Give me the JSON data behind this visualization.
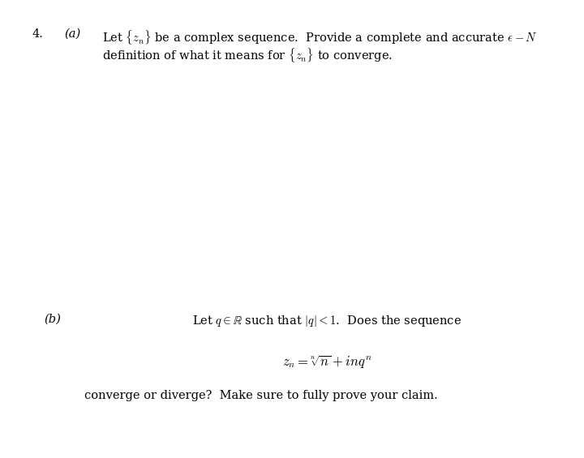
{
  "background_color": "#ffffff",
  "fig_width": 7.2,
  "fig_height": 5.65,
  "dpi": 100,
  "text_color": "#000000",
  "question_number": "4.",
  "part_a_label": "(a)",
  "part_a_line1": "Let $\\{z_n\\}$ be a complex sequence.  Provide a complete and accurate $\\epsilon - N$",
  "part_a_line2": "definition of what it means for $\\{z_n\\}$ to converge.",
  "part_b_label": "(b)",
  "part_b_text": "Let $q \\in \\mathbb{R}$ such that $|q| < 1$.  Does the sequence",
  "part_b_formula": "$z_n = \\sqrt[n]{n} + inq^n$",
  "part_b_end": "converge or diverge?  Make sure to fully prove your claim.",
  "font_size_main": 10.5,
  "font_size_formula": 12
}
